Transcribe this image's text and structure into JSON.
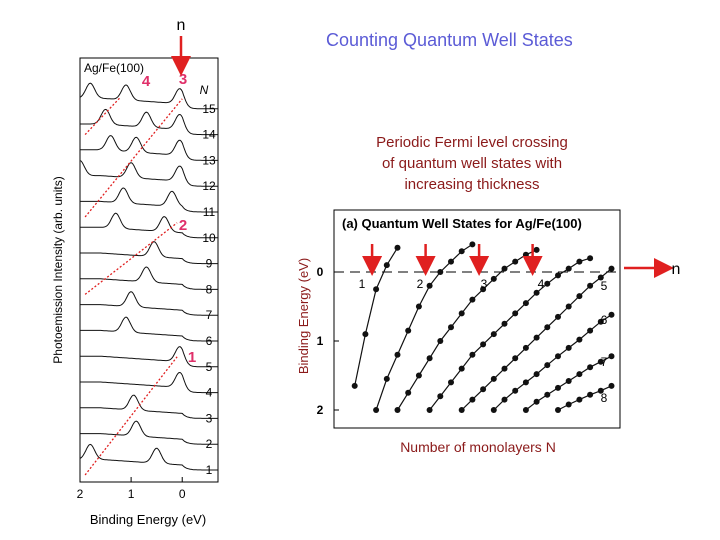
{
  "slide": {
    "title": "Counting Quantum Well States",
    "caption_lines": [
      "Periodic Fermi level crossing",
      "of quantum well states with",
      "increasing thickness"
    ],
    "n_marker_top": "n",
    "n_marker_right": "n"
  },
  "colors": {
    "title": "#5b5bd6",
    "caption": "#8b1a1a",
    "marker_red": "#e02020",
    "label_pink": "#e0306a"
  },
  "chart_data": [
    {
      "type": "line",
      "panel": "spectra",
      "sample_label": "Ag/Fe(100)",
      "xlabel": "Binding Energy (eV)",
      "ylabel": "Photoemission Intensity (arb. units)",
      "x_ticks": [
        "2",
        "1",
        "0"
      ],
      "xlim": [
        2.0,
        -0.7
      ],
      "series_axis_label": "N",
      "N_values": [
        1,
        2,
        3,
        4,
        5,
        6,
        7,
        8,
        9,
        10,
        11,
        12,
        13,
        14,
        15
      ],
      "guide_labels": [
        "1",
        "2",
        "3",
        "4"
      ],
      "peaks_by_N": {
        "1": [
          0.5,
          1.8
        ],
        "2": [
          0.9
        ],
        "3": [
          0.95
        ],
        "4": [
          0.05
        ],
        "5": [
          0.05
        ],
        "6": [
          1.1
        ],
        "7": [
          1.0
        ],
        "8": [
          0.7
        ],
        "9": [
          0.55
        ],
        "10": [
          1.3,
          0.35
        ],
        "11": [
          1.15,
          0.2
        ],
        "12": [
          2.0,
          1.0,
          0.05
        ],
        "13": [
          1.4,
          0.9,
          0.05
        ],
        "14": [
          1.5,
          0.7,
          0.05
        ],
        "15": [
          1.8,
          1.1,
          0.05
        ]
      }
    },
    {
      "type": "scatter",
      "panel": "dispersion",
      "title": "(a) Quantum Well States for Ag/Fe(100)",
      "xlabel": "Number of monolayers N",
      "ylabel": "Binding Energy (eV)",
      "y_ticks": [
        "0",
        "1",
        "2"
      ],
      "ylim": [
        2.0,
        -0.5
      ],
      "xlim": [
        0,
        25
      ],
      "curve_labels": [
        "1",
        "2",
        "3",
        "4",
        "5",
        "6",
        "7",
        "8"
      ],
      "fermi_crossings_N": [
        3,
        8,
        13,
        18
      ],
      "series": [
        {
          "name": "1",
          "points": [
            [
              1,
              1.65
            ],
            [
              2,
              0.9
            ],
            [
              3,
              0.25
            ],
            [
              4,
              -0.1
            ],
            [
              5,
              -0.35
            ]
          ]
        },
        {
          "name": "2",
          "points": [
            [
              3,
              2.0
            ],
            [
              4,
              1.55
            ],
            [
              5,
              1.2
            ],
            [
              6,
              0.85
            ],
            [
              7,
              0.5
            ],
            [
              8,
              0.2
            ],
            [
              9,
              0.0
            ],
            [
              10,
              -0.15
            ],
            [
              11,
              -0.3
            ],
            [
              12,
              -0.4
            ]
          ]
        },
        {
          "name": "3",
          "points": [
            [
              5,
              2.0
            ],
            [
              6,
              1.75
            ],
            [
              7,
              1.5
            ],
            [
              8,
              1.25
            ],
            [
              9,
              1.0
            ],
            [
              10,
              0.8
            ],
            [
              11,
              0.6
            ],
            [
              12,
              0.4
            ],
            [
              13,
              0.25
            ],
            [
              14,
              0.1
            ],
            [
              15,
              -0.05
            ],
            [
              16,
              -0.15
            ],
            [
              17,
              -0.25
            ],
            [
              18,
              -0.32
            ]
          ]
        },
        {
          "name": "4",
          "points": [
            [
              8,
              2.0
            ],
            [
              9,
              1.8
            ],
            [
              10,
              1.6
            ],
            [
              11,
              1.4
            ],
            [
              12,
              1.2
            ],
            [
              13,
              1.05
            ],
            [
              14,
              0.9
            ],
            [
              15,
              0.75
            ],
            [
              16,
              0.6
            ],
            [
              17,
              0.45
            ],
            [
              18,
              0.3
            ],
            [
              19,
              0.17
            ],
            [
              20,
              0.05
            ],
            [
              21,
              -0.05
            ],
            [
              22,
              -0.15
            ],
            [
              23,
              -0.2
            ]
          ]
        },
        {
          "name": "5",
          "points": [
            [
              11,
              2.0
            ],
            [
              12,
              1.85
            ],
            [
              13,
              1.7
            ],
            [
              14,
              1.55
            ],
            [
              15,
              1.4
            ],
            [
              16,
              1.25
            ],
            [
              17,
              1.1
            ],
            [
              18,
              0.95
            ],
            [
              19,
              0.8
            ],
            [
              20,
              0.65
            ],
            [
              21,
              0.5
            ],
            [
              22,
              0.35
            ],
            [
              23,
              0.2
            ],
            [
              24,
              0.08
            ],
            [
              25,
              -0.05
            ]
          ]
        },
        {
          "name": "6",
          "points": [
            [
              14,
              2.0
            ],
            [
              15,
              1.85
            ],
            [
              16,
              1.72
            ],
            [
              17,
              1.6
            ],
            [
              18,
              1.48
            ],
            [
              19,
              1.35
            ],
            [
              20,
              1.22
            ],
            [
              21,
              1.1
            ],
            [
              22,
              0.98
            ],
            [
              23,
              0.85
            ],
            [
              24,
              0.72
            ],
            [
              25,
              0.62
            ]
          ]
        },
        {
          "name": "7",
          "points": [
            [
              17,
              2.0
            ],
            [
              18,
              1.88
            ],
            [
              19,
              1.78
            ],
            [
              20,
              1.68
            ],
            [
              21,
              1.58
            ],
            [
              22,
              1.48
            ],
            [
              23,
              1.38
            ],
            [
              24,
              1.3
            ],
            [
              25,
              1.22
            ]
          ]
        },
        {
          "name": "8",
          "points": [
            [
              20,
              2.0
            ],
            [
              21,
              1.92
            ],
            [
              22,
              1.85
            ],
            [
              23,
              1.78
            ],
            [
              24,
              1.72
            ],
            [
              25,
              1.65
            ]
          ]
        }
      ]
    }
  ]
}
